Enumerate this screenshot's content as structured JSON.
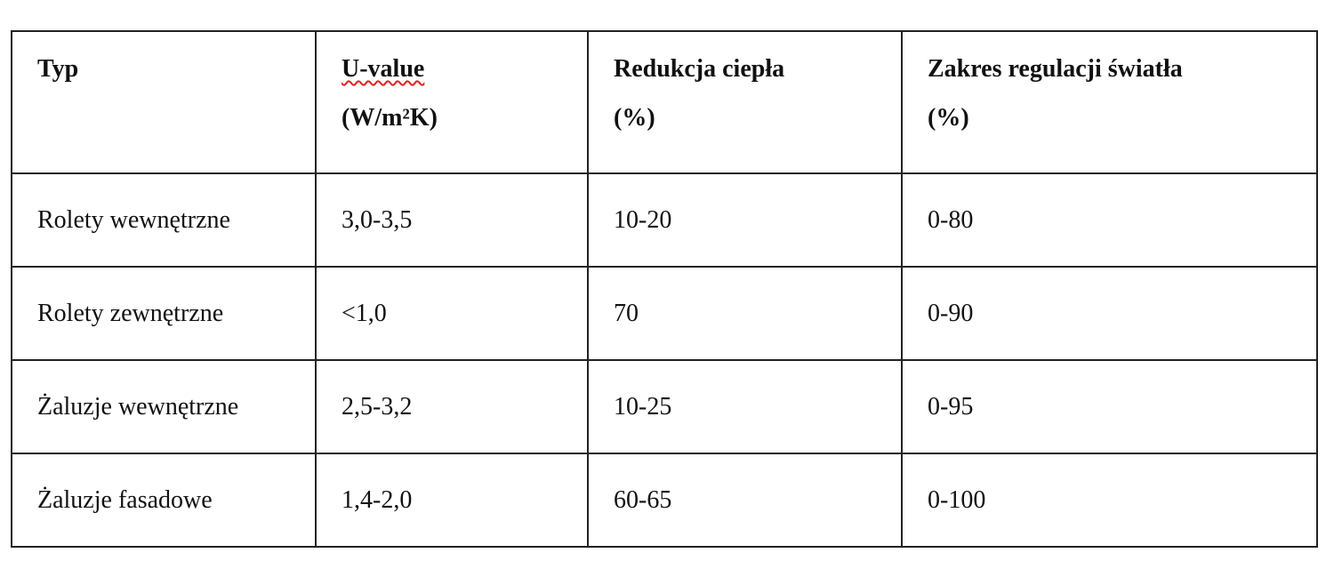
{
  "table": {
    "header": [
      [
        "Typ"
      ],
      [
        "U-value",
        "(W/m²K)"
      ],
      [
        "Redukcja ciepła",
        "(%)"
      ],
      [
        "Zakres regulacji światła",
        "(%)"
      ]
    ],
    "rows": [
      [
        "Rolety wewnętrzne",
        "3,0-3,5",
        "10-20",
        "0-80"
      ],
      [
        "Rolety zewnętrzne",
        "<1,0",
        "70",
        "0-90"
      ],
      [
        "Żaluzje wewnętrzne",
        "2,5-3,2",
        "10-25",
        "0-95"
      ],
      [
        "Żaluzje fasadowe",
        "1,4-2,0",
        "60-65",
        "0-100"
      ]
    ]
  }
}
